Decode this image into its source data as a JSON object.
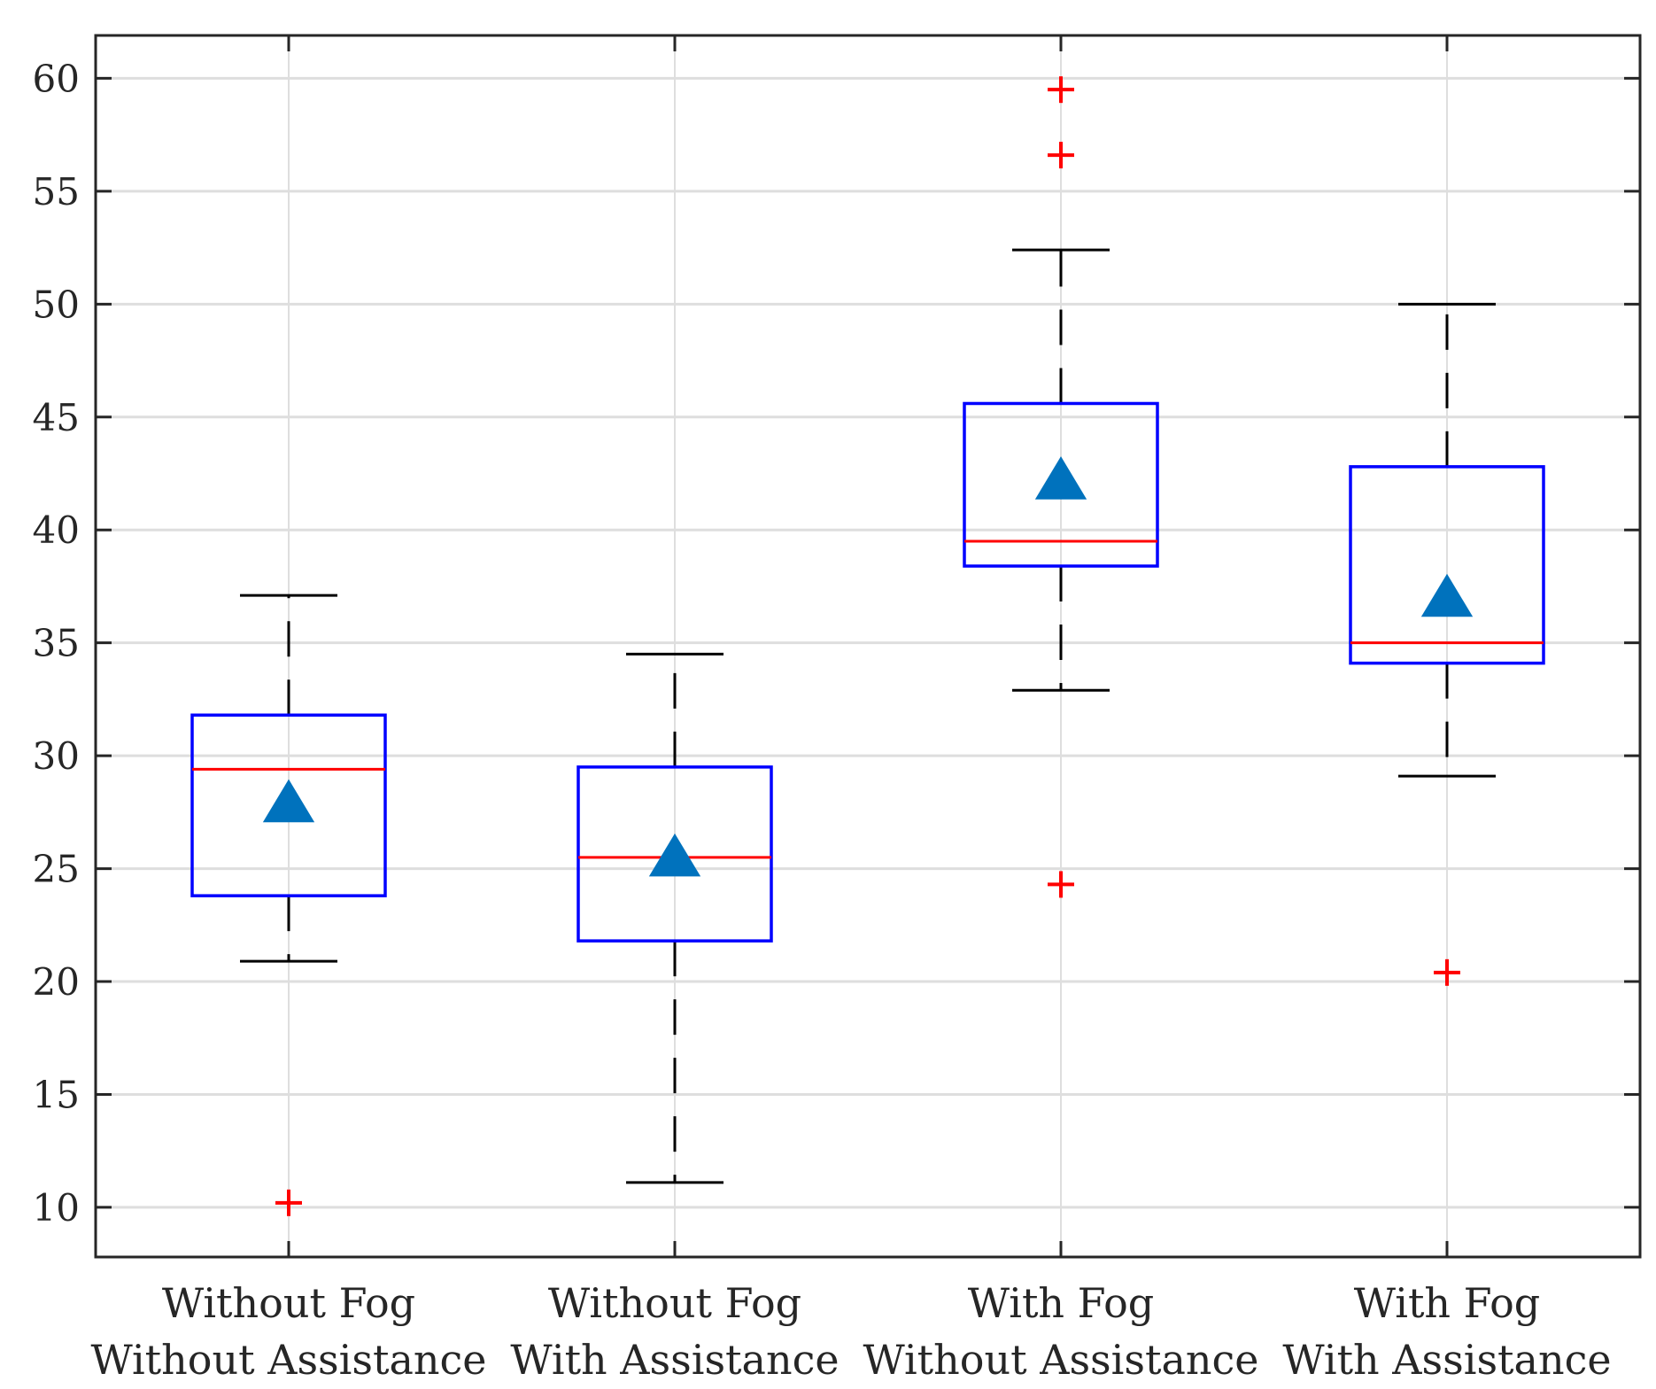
{
  "chart_data": {
    "type": "boxplot",
    "title": "",
    "xlabel": "",
    "ylabel": "",
    "ylim": [
      7.8,
      61.9
    ],
    "yticks": [
      10,
      15,
      20,
      25,
      30,
      35,
      40,
      45,
      50,
      55,
      60
    ],
    "ytick_labels": [
      "10",
      "15",
      "20",
      "25",
      "30",
      "35",
      "40",
      "45",
      "50",
      "55",
      "60"
    ],
    "grid": true,
    "categories": [
      {
        "line1": "Without Fog",
        "line2": "Without Assistance"
      },
      {
        "line1": "Without Fog",
        "line2": "With Assistance"
      },
      {
        "line1": "With Fog",
        "line2": "Without Assistance"
      },
      {
        "line1": "With Fog",
        "line2": "With Assistance"
      }
    ],
    "boxes": [
      {
        "whisker_low": 20.9,
        "q1": 23.8,
        "median": 29.4,
        "q3": 31.8,
        "whisker_high": 37.1,
        "mean": 27.9,
        "outliers": [
          10.2
        ]
      },
      {
        "whisker_low": 11.1,
        "q1": 21.8,
        "median": 25.5,
        "q3": 29.5,
        "whisker_high": 34.5,
        "mean": 25.5,
        "outliers": []
      },
      {
        "whisker_low": 32.9,
        "q1": 38.4,
        "median": 39.5,
        "q3": 45.6,
        "whisker_high": 52.4,
        "mean": 42.2,
        "outliers": [
          59.5,
          56.6,
          24.3
        ]
      },
      {
        "whisker_low": 29.1,
        "q1": 34.1,
        "median": 35.0,
        "q3": 42.8,
        "whisker_high": 50.0,
        "mean": 37.0,
        "outliers": [
          20.4
        ]
      }
    ],
    "colors": {
      "box": "#0000ff",
      "median": "#ff0000",
      "outlier": "#ff0000",
      "whisker": "#000000",
      "mean_marker": "#0072bd",
      "grid": "#dedede",
      "axis": "#262626"
    },
    "mean_marker": "triangle",
    "outlier_marker": "plus"
  }
}
